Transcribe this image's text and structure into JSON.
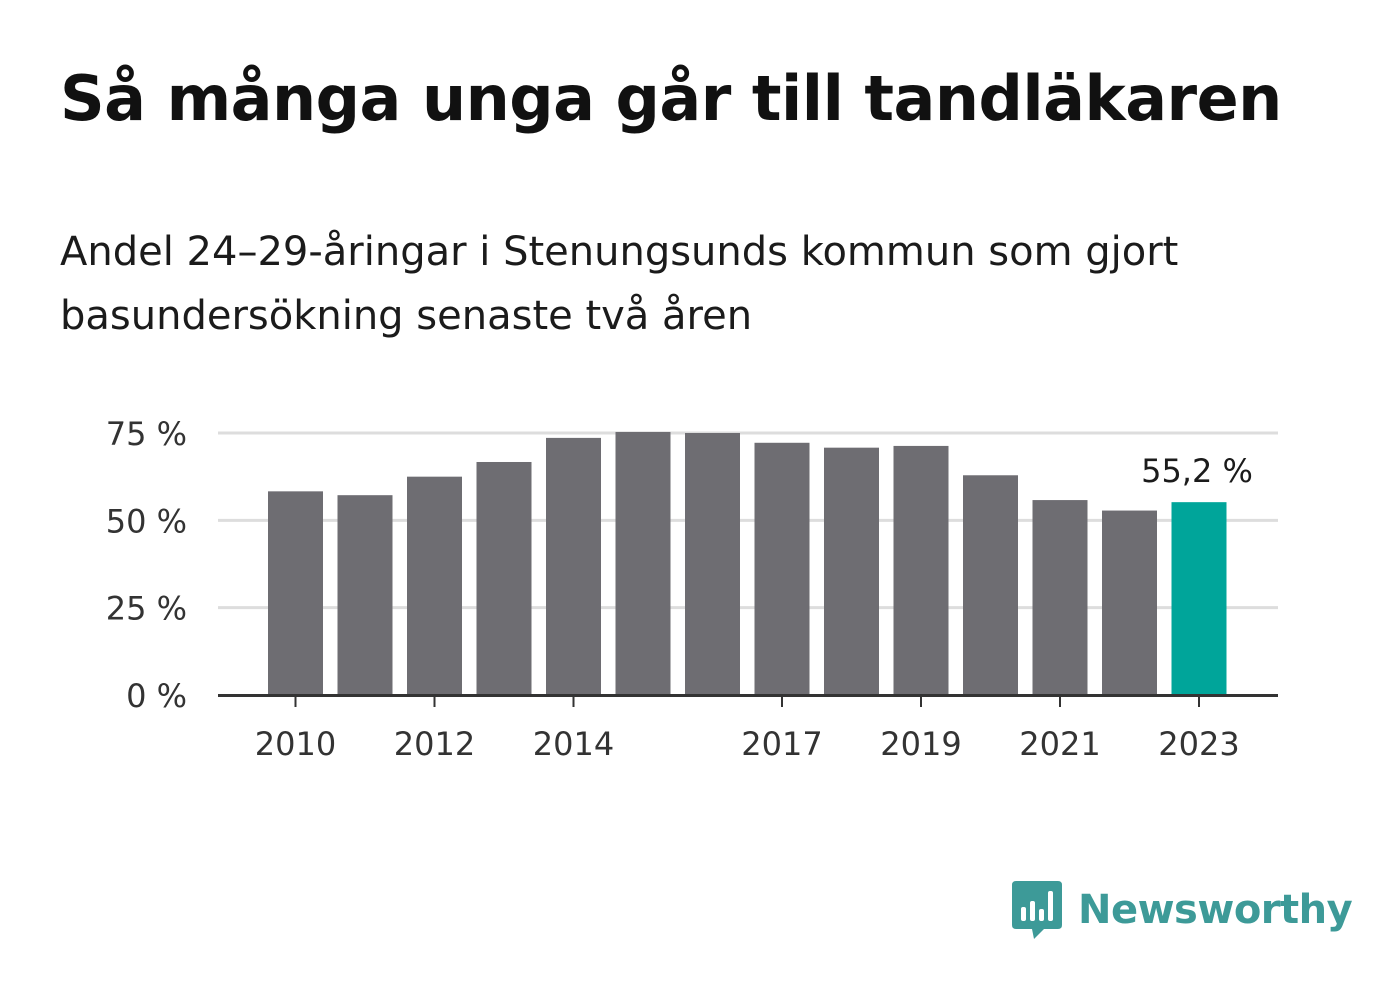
{
  "title": "Så många unga går till tandläkaren",
  "subtitle": "Andel 24–29-åringar i Stenungsunds kommun som gjort basundersökning senaste två åren",
  "brand": {
    "name": "Newsworthy",
    "color": "#3d9a98",
    "icon": "newsworthy-bar-chart-speech-bubble-icon"
  },
  "colors": {
    "bar": "#6e6d72",
    "highlight": "#00a59a",
    "grid": "#dddddd",
    "axis": "#333333"
  },
  "chart_data": {
    "type": "bar",
    "categories": [
      "2010",
      "2011",
      "2012",
      "2013",
      "2014",
      "2015",
      "2016",
      "2017",
      "2018",
      "2019",
      "2020",
      "2021",
      "2022",
      "2023"
    ],
    "values": [
      58.3,
      57.2,
      62.5,
      66.7,
      73.6,
      75.3,
      75.0,
      72.2,
      70.8,
      71.3,
      62.9,
      55.8,
      52.8,
      55.2
    ],
    "highlight_index": 13,
    "highlight_label": "55,2 %",
    "x_tick_labels": [
      "2010",
      "2012",
      "2014",
      "2017",
      "2019",
      "2021",
      "2023"
    ],
    "y_ticks": [
      0,
      25,
      50,
      75
    ],
    "y_tick_labels": [
      "0 %",
      "25 %",
      "50 %",
      "75 %"
    ],
    "ylim": [
      0,
      75
    ],
    "grid": true,
    "legend": "none"
  }
}
